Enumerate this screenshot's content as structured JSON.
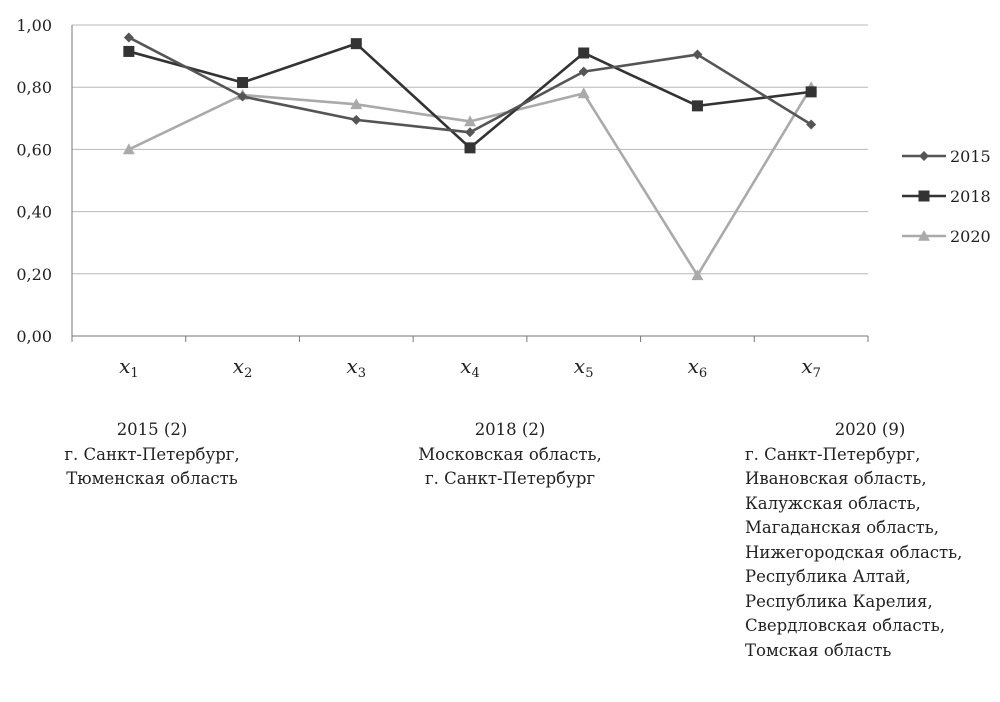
{
  "chart_data": {
    "type": "line",
    "categories": [
      {
        "base": "x",
        "sub": "1"
      },
      {
        "base": "x",
        "sub": "2"
      },
      {
        "base": "x",
        "sub": "3"
      },
      {
        "base": "x",
        "sub": "4"
      },
      {
        "base": "x",
        "sub": "5"
      },
      {
        "base": "x",
        "sub": "6"
      },
      {
        "base": "x",
        "sub": "7"
      }
    ],
    "series": [
      {
        "name": "2015",
        "marker": "diamond",
        "color": "#555555",
        "values": [
          0.96,
          0.77,
          0.695,
          0.655,
          0.85,
          0.905,
          0.68
        ]
      },
      {
        "name": "2018",
        "marker": "square",
        "color": "#333333",
        "values": [
          0.915,
          0.815,
          0.94,
          0.605,
          0.91,
          0.74,
          0.785
        ]
      },
      {
        "name": "2020",
        "marker": "triangle",
        "color": "#aaaaaa",
        "values": [
          0.6,
          0.775,
          0.745,
          0.69,
          0.78,
          0.195,
          0.8
        ]
      }
    ],
    "ylim": [
      0,
      1
    ],
    "yticks": [
      "0,00",
      "0,20",
      "0,40",
      "0,60",
      "0,80",
      "1,00"
    ],
    "grid": true,
    "legend_position": "right"
  },
  "notes": {
    "left": [
      "2015 (2)",
      "г. Санкт-Петербург,",
      "Тюменская область"
    ],
    "mid": [
      "2018 (2)",
      "Московская область,",
      "г. Санкт-Петербург"
    ],
    "right": [
      "2020 (9)",
      "г. Санкт-Петербург,",
      "Ивановская область,",
      "Калужская область,",
      "Магаданская область,",
      "Нижегородская область,",
      "Республика Алтай,",
      "Республика Карелия,",
      "Свердловская область,",
      "Томская область"
    ]
  }
}
